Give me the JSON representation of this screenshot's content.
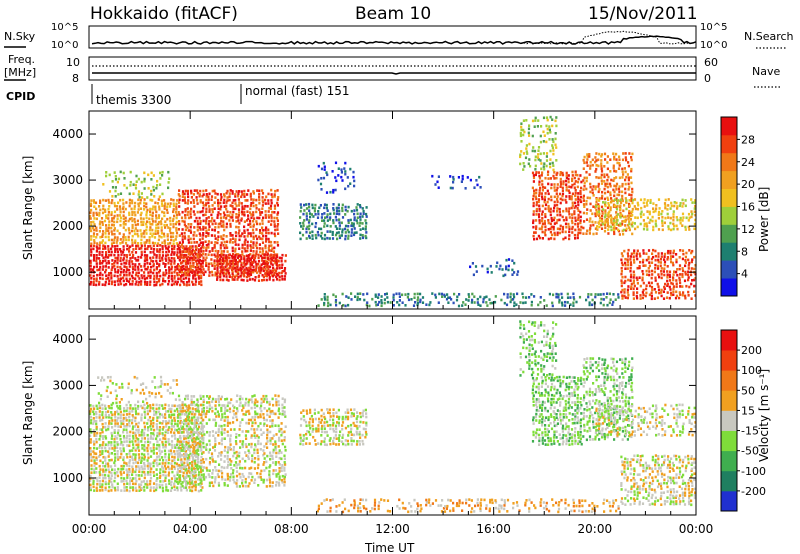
{
  "header": {
    "station": "Hokkaido (fitACF)",
    "beam": "Beam 10",
    "date": "15/Nov/2011"
  },
  "status_panel": {
    "nsky_label": "N.Sky",
    "nsky_ticks": [
      "10^5",
      "10^0"
    ],
    "nsearch_label": "N.Search",
    "freq_label_line1": "Freq.",
    "freq_label_line2": "[MHz]",
    "freq_ticks": [
      "10",
      "8"
    ],
    "nave_label": "Nave",
    "nave_ticks": [
      "60",
      "0"
    ],
    "cpid_label": "CPID",
    "cpid_segments": [
      "themis 3300",
      "normal (fast) 151"
    ]
  },
  "chart_data": [
    {
      "type": "heatmap",
      "name": "power",
      "ylabel": "Slant Range [km]",
      "xlabel": "",
      "x_ticks": [
        "00:00",
        "04:00",
        "08:00",
        "12:00",
        "16:00",
        "20:00",
        "00:00"
      ],
      "y_ticks": [
        "1000",
        "2000",
        "3000",
        "4000"
      ],
      "ylim": [
        200,
        4500
      ],
      "colorbar": {
        "label": "Power [dB]",
        "ticks": [
          "4",
          "8",
          "12",
          "16",
          "20",
          "24",
          "28"
        ],
        "colors": [
          "#1010e8",
          "#2c4fb8",
          "#1e7f70",
          "#4fa04f",
          "#9fcf3a",
          "#f0c020",
          "#f0a020",
          "#f07818",
          "#f04010",
          "#e81010"
        ]
      },
      "regions": [
        {
          "t0": 0.0,
          "t1": 4.5,
          "r0": 700,
          "r1": 1600,
          "level": 9,
          "density": 0.95
        },
        {
          "t0": 0.0,
          "t1": 3.5,
          "r0": 1600,
          "r1": 2600,
          "level": 6,
          "density": 0.85
        },
        {
          "t0": 0.5,
          "t1": 3.2,
          "r0": 2600,
          "r1": 3200,
          "level": 4,
          "density": 0.35
        },
        {
          "t0": 3.5,
          "t1": 7.5,
          "r0": 900,
          "r1": 2800,
          "level": 8,
          "density": 0.8
        },
        {
          "t0": 5.0,
          "t1": 7.8,
          "r0": 800,
          "r1": 1400,
          "level": 9,
          "density": 0.9
        },
        {
          "t0": 8.3,
          "t1": 11.0,
          "r0": 1700,
          "r1": 2500,
          "level": 2,
          "density": 0.75
        },
        {
          "t0": 9.0,
          "t1": 10.5,
          "r0": 2700,
          "r1": 3400,
          "level": 1,
          "density": 0.25
        },
        {
          "t0": 13.5,
          "t1": 15.5,
          "r0": 2800,
          "r1": 3100,
          "level": 1,
          "density": 0.3
        },
        {
          "t0": 15.0,
          "t1": 17.0,
          "r0": 900,
          "r1": 1300,
          "level": 1,
          "density": 0.25
        },
        {
          "t0": 9.0,
          "t1": 21.0,
          "r0": 250,
          "r1": 550,
          "level": 2,
          "density": 0.45
        },
        {
          "t0": 17.5,
          "t1": 19.5,
          "r0": 1700,
          "r1": 3200,
          "level": 8,
          "density": 0.75
        },
        {
          "t0": 17.0,
          "t1": 18.5,
          "r0": 3200,
          "r1": 4400,
          "level": 4,
          "density": 0.45
        },
        {
          "t0": 19.5,
          "t1": 21.5,
          "r0": 1800,
          "r1": 3600,
          "level": 7,
          "density": 0.6
        },
        {
          "t0": 20.0,
          "t1": 24.0,
          "r0": 1900,
          "r1": 2600,
          "level": 5,
          "density": 0.55
        },
        {
          "t0": 21.0,
          "t1": 24.0,
          "r0": 400,
          "r1": 1500,
          "level": 8,
          "density": 0.7
        }
      ]
    },
    {
      "type": "heatmap",
      "name": "velocity",
      "ylabel": "Slant Range [km]",
      "xlabel": "Time UT",
      "x_ticks": [
        "00:00",
        "04:00",
        "08:00",
        "12:00",
        "16:00",
        "20:00",
        "00:00"
      ],
      "y_ticks": [
        "1000",
        "2000",
        "3000",
        "4000"
      ],
      "ylim": [
        200,
        4500
      ],
      "colorbar": {
        "label": "Velocity [m s⁻¹]",
        "ticks": [
          "200",
          "100",
          "50",
          "15",
          "-15",
          "-50",
          "-100",
          "-200"
        ],
        "colors": [
          "#2030d0",
          "#1f7f60",
          "#3fae4f",
          "#7fdc3a",
          "#c8c8c0",
          "#f0a020",
          "#f07818",
          "#f04010",
          "#e81010"
        ]
      },
      "regions": [
        {
          "t0": 0.0,
          "t1": 4.5,
          "r0": 700,
          "r1": 2600,
          "level": 4,
          "density": 0.9
        },
        {
          "t0": 0.3,
          "t1": 3.5,
          "r0": 2600,
          "r1": 3200,
          "level": 4,
          "density": 0.3
        },
        {
          "t0": 3.5,
          "t1": 7.8,
          "r0": 800,
          "r1": 2800,
          "level": 4,
          "density": 0.65
        },
        {
          "t0": 8.3,
          "t1": 11.0,
          "r0": 1700,
          "r1": 2500,
          "level": 4,
          "density": 0.7
        },
        {
          "t0": 9.0,
          "t1": 21.0,
          "r0": 250,
          "r1": 550,
          "level": 5,
          "density": 0.4
        },
        {
          "t0": 17.5,
          "t1": 19.5,
          "r0": 1700,
          "r1": 3200,
          "level": 3,
          "density": 0.75
        },
        {
          "t0": 17.0,
          "t1": 18.5,
          "r0": 3200,
          "r1": 4400,
          "level": 3,
          "density": 0.45
        },
        {
          "t0": 19.5,
          "t1": 21.5,
          "r0": 1800,
          "r1": 3600,
          "level": 3,
          "density": 0.6
        },
        {
          "t0": 21.0,
          "t1": 24.0,
          "r0": 400,
          "r1": 1500,
          "level": 4,
          "density": 0.65
        },
        {
          "t0": 20.0,
          "t1": 24.0,
          "r0": 1900,
          "r1": 2600,
          "level": 4,
          "density": 0.5
        }
      ]
    }
  ]
}
